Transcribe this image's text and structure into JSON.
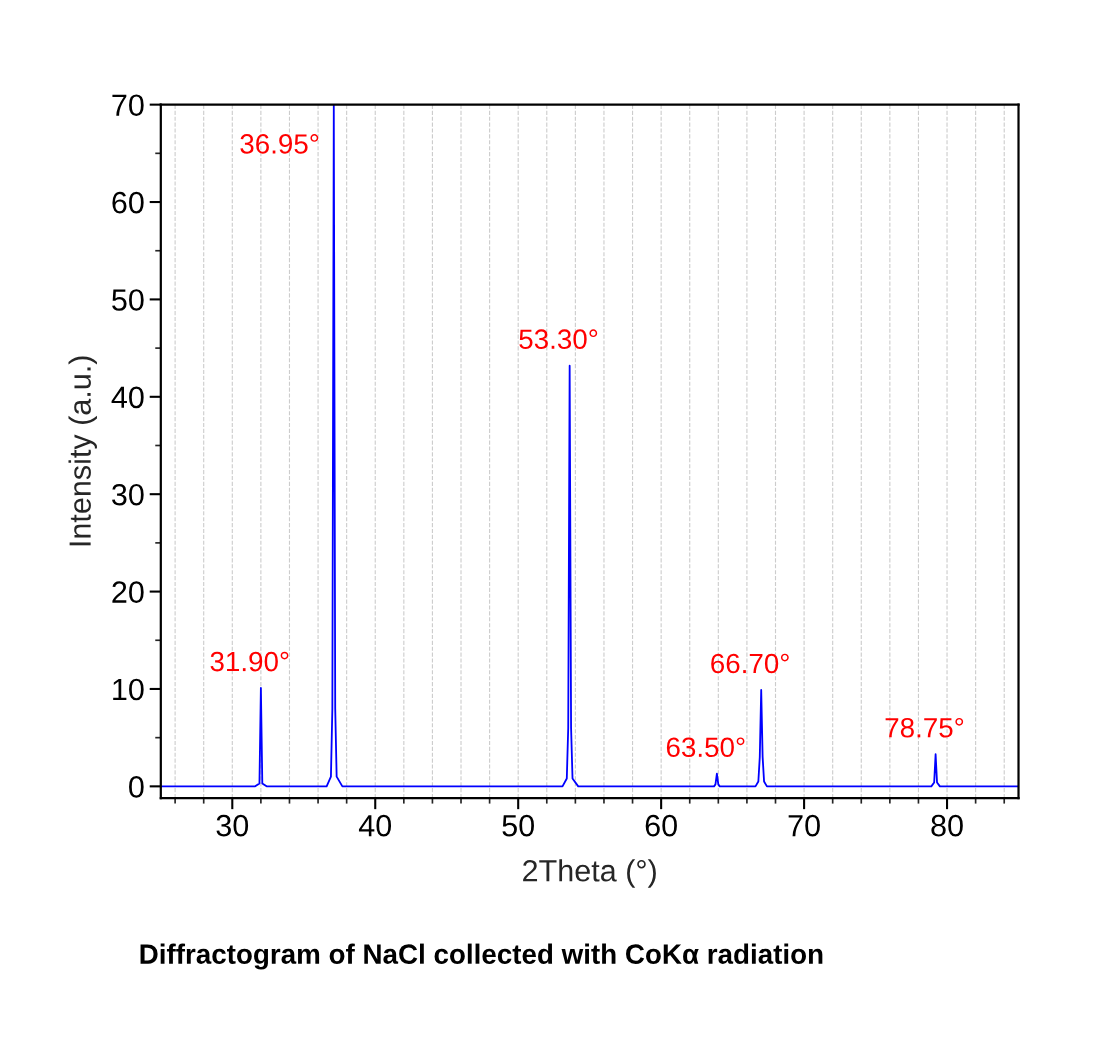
{
  "chart_data": {
    "type": "line",
    "xlabel": "2Theta (°)",
    "ylabel": "Intensity (a.u.)",
    "x": [
      25,
      31.6,
      31.9,
      32.0,
      32.1,
      32.4,
      36.6,
      36.9,
      37.0,
      37.1,
      37.2,
      37.3,
      37.7,
      53.1,
      53.4,
      53.5,
      53.6,
      53.7,
      53.8,
      54.2,
      63.7,
      63.8,
      63.9,
      64.0,
      64.1,
      66.6,
      66.8,
      66.9,
      67.0,
      67.1,
      67.2,
      67.4,
      78.9,
      79.1,
      79.2,
      79.3,
      79.5,
      85
    ],
    "series": [
      {
        "color": "#0000ff",
        "values": [
          0,
          0,
          0.3,
          10.1,
          0.3,
          0,
          0,
          1,
          8,
          70,
          8,
          1,
          0,
          0,
          0.8,
          6,
          43.2,
          6,
          0.8,
          0,
          0,
          0.2,
          1.3,
          0.2,
          0,
          0,
          0.5,
          3,
          9.9,
          3,
          0.5,
          0,
          0,
          0.4,
          3.3,
          0.4,
          0,
          0
        ]
      }
    ],
    "xlim": [
      25,
      85
    ],
    "xticks": [
      30,
      40,
      50,
      60,
      70,
      80
    ],
    "ylim": [
      -1.2,
      70
    ],
    "yticks": [
      0,
      10,
      20,
      30,
      40,
      50,
      60,
      70
    ],
    "grid": "x",
    "marker": "none",
    "line_style": "solid",
    "annotations": [
      {
        "text": "31.90°",
        "x": 32.0,
        "y": 10.1
      },
      {
        "text": "36.95°",
        "x": 37.1,
        "y": 70
      },
      {
        "text": "53.30°",
        "x": 53.6,
        "y": 43.2
      },
      {
        "text": "63.50°",
        "x": 63.9,
        "y": 1.3
      },
      {
        "text": "66.70°",
        "x": 67.0,
        "y": 9.9
      },
      {
        "text": "78.75°",
        "x": 79.2,
        "y": 3.3
      },
      "Diffractogram of NaCl collected with CoKα radiation"
    ]
  }
}
